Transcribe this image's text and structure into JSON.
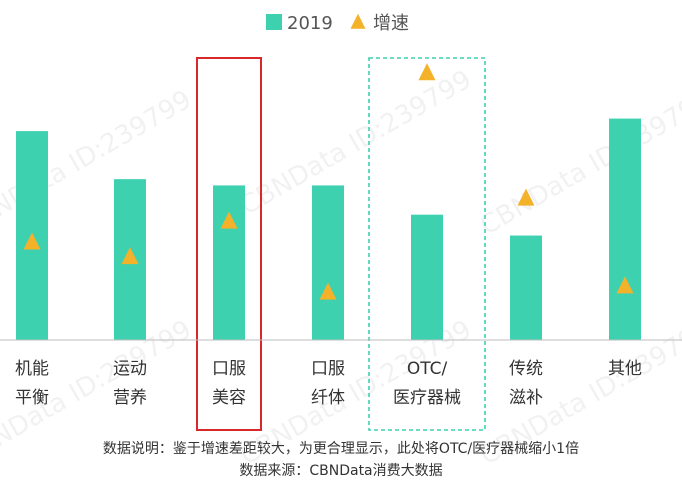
{
  "chart_data": {
    "type": "bar",
    "categories": [
      [
        "机能",
        "平衡"
      ],
      [
        "运动",
        "营养"
      ],
      [
        "口服",
        "美容"
      ],
      [
        "口服",
        "纤体"
      ],
      [
        "OTC/",
        "医疗器械"
      ],
      [
        "传统",
        "滋补"
      ],
      [
        "其他"
      ]
    ],
    "series": [
      {
        "name": "2019",
        "kind": "bar",
        "color": "#3dd1b0",
        "values": [
          100,
          77,
          74,
          74,
          60,
          50,
          106
        ]
      },
      {
        "name": "增速",
        "kind": "marker",
        "color": "#f4b12a",
        "values": [
          47,
          40,
          57,
          23,
          128,
          68,
          26
        ]
      }
    ],
    "highlights": [
      {
        "category_index": 2,
        "color": "#d9272e",
        "style": "solid"
      },
      {
        "category_index": 4,
        "color": "#3dd1b0",
        "style": "dashed"
      }
    ],
    "footnotes": [
      "数据说明：鉴于增速差距较大，为更合理显示，此处将OTC/医疗器械缩小1倍",
      "数据来源：CBNData消费大数据"
    ],
    "watermark": "CBNData ID:239799",
    "grid": false,
    "legend_position": "top",
    "ylim": [
      0,
      135
    ]
  }
}
